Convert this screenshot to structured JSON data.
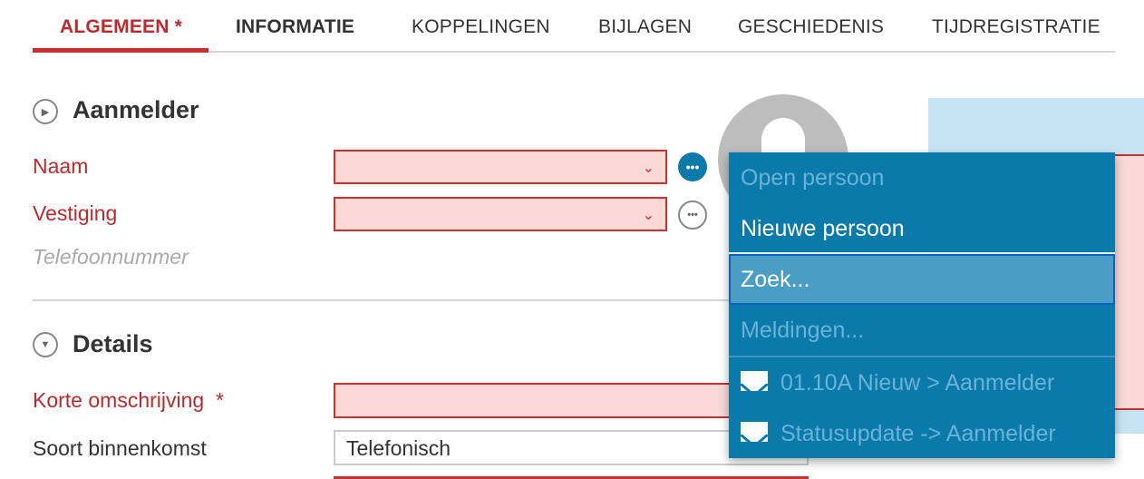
{
  "tabs": [
    {
      "label": "ALGEMEEN *"
    },
    {
      "label": "INFORMATIE"
    },
    {
      "label": "KOPPELINGEN"
    },
    {
      "label": "BIJLAGEN"
    },
    {
      "label": "GESCHIEDENIS"
    },
    {
      "label": "TIJDREGISTRATIE"
    }
  ],
  "aanmelder": {
    "title": "Aanmelder",
    "naam_label": "Naam",
    "vestiging_label": "Vestiging",
    "telefoon_label": "Telefoonnummer"
  },
  "details": {
    "title": "Details",
    "korte_label": "Korte omschrijving",
    "required_mark": "*",
    "soort_label": "Soort binnenkomst",
    "soort_value": "Telefonisch"
  },
  "menu": {
    "items": [
      {
        "label": "Open persoon",
        "enabled": false
      },
      {
        "label": "Nieuwe persoon",
        "enabled": true
      },
      {
        "label": "Zoek...",
        "enabled": true,
        "highlighted": true
      },
      {
        "label": "Meldingen...",
        "enabled": false
      },
      {
        "label": "01.10A Nieuw > Aanmelder",
        "icon": "envelope-icon",
        "enabled": false
      },
      {
        "label": "Statusupdate -> Aanmelder",
        "icon": "envelope-icon",
        "enabled": false
      }
    ]
  },
  "colors": {
    "accent": "#c0282d",
    "menu": "#0a7aab",
    "highlight": "#4a9ec6",
    "error_fill": "#fad9d7"
  }
}
